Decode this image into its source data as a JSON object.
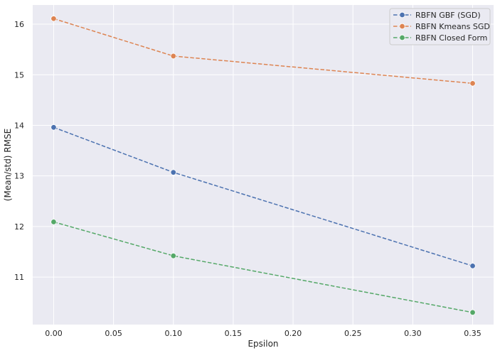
{
  "chart_data": {
    "type": "line",
    "xlabel": "Epsilon",
    "ylabel": "(Mean/std) RMSE",
    "xlim": [
      -0.0175,
      0.3675
    ],
    "ylim": [
      10.06,
      16.38
    ],
    "x_ticks": [
      0.0,
      0.05,
      0.1,
      0.15,
      0.2,
      0.25,
      0.3,
      0.35
    ],
    "x_tick_labels": [
      "0.00",
      "0.05",
      "0.10",
      "0.15",
      "0.20",
      "0.25",
      "0.30",
      "0.35"
    ],
    "y_ticks": [
      11,
      12,
      13,
      14,
      15,
      16
    ],
    "y_tick_labels": [
      "11",
      "12",
      "13",
      "14",
      "15",
      "16"
    ],
    "grid": true,
    "legend_position": "top-right",
    "x": [
      0.0,
      0.1,
      0.35
    ],
    "series": [
      {
        "name": "RBFN GBF (SGD)",
        "values": [
          13.96,
          13.07,
          11.22
        ],
        "color": "#4c72b0"
      },
      {
        "name": "RBFN  Kmeans SGD",
        "values": [
          16.11,
          15.37,
          14.83
        ],
        "color": "#dd8452"
      },
      {
        "name": "RBFN Closed Form",
        "values": [
          12.09,
          11.42,
          10.3
        ],
        "color": "#55a868"
      }
    ]
  }
}
